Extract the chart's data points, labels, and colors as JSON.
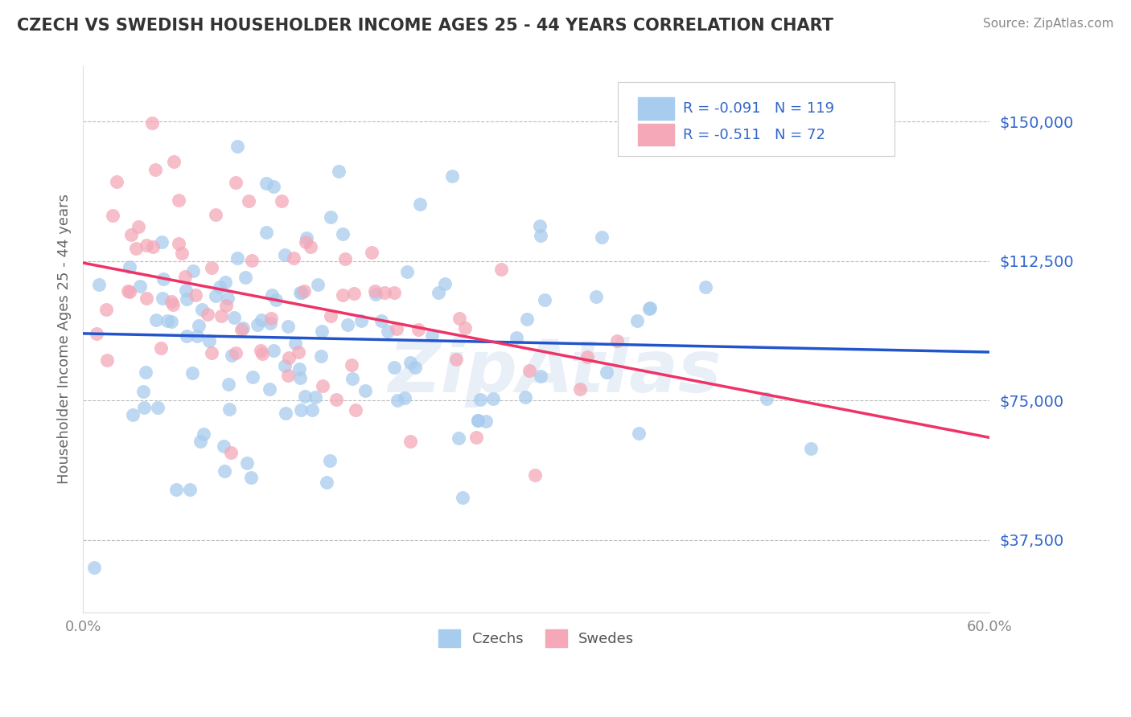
{
  "title": "CZECH VS SWEDISH HOUSEHOLDER INCOME AGES 25 - 44 YEARS CORRELATION CHART",
  "source": "Source: ZipAtlas.com",
  "ylabel": "Householder Income Ages 25 - 44 years",
  "xlim": [
    0.0,
    0.6
  ],
  "ylim": [
    18000,
    165000
  ],
  "yticks": [
    37500,
    75000,
    112500,
    150000
  ],
  "ytick_labels": [
    "$37,500",
    "$75,000",
    "$112,500",
    "$150,000"
  ],
  "xtick_labels": [
    "0.0%",
    "60.0%"
  ],
  "legend_blue_r": "-0.091",
  "legend_blue_n": "119",
  "legend_pink_r": "-0.511",
  "legend_pink_n": "72",
  "blue_color": "#A8CCEE",
  "pink_color": "#F4A8B8",
  "blue_line_color": "#2255CC",
  "pink_line_color": "#EE3366",
  "blue_r": -0.091,
  "blue_n": 119,
  "pink_r": -0.511,
  "pink_n": 72,
  "blue_line_y0": 93000,
  "blue_line_y1": 88000,
  "pink_line_y0": 112000,
  "pink_line_y1": 65000,
  "watermark": "ZipAtlas",
  "background_color": "#FFFFFF",
  "grid_color": "#BBBBBB",
  "title_color": "#333333",
  "axis_label_color": "#666666",
  "legend_text_color": "#3366CC",
  "ytick_color": "#3366CC"
}
